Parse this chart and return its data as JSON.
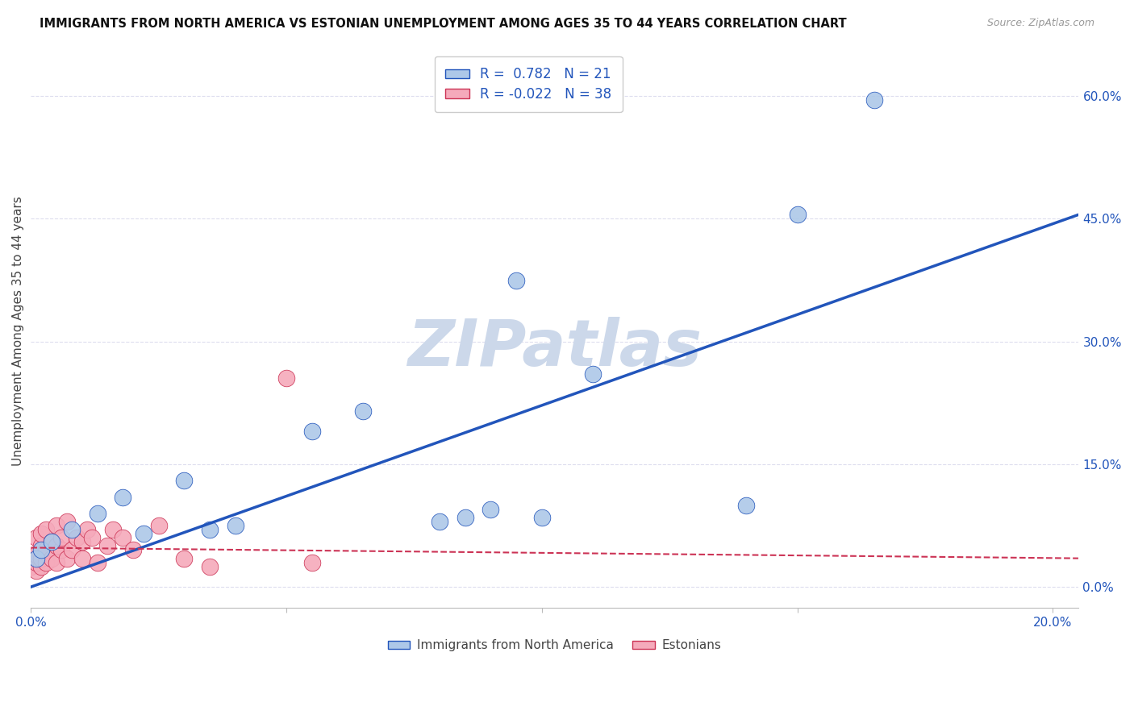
{
  "title": "IMMIGRANTS FROM NORTH AMERICA VS ESTONIAN UNEMPLOYMENT AMONG AGES 35 TO 44 YEARS CORRELATION CHART",
  "source": "Source: ZipAtlas.com",
  "ylabel": "Unemployment Among Ages 35 to 44 years",
  "xlim": [
    0.0,
    0.205
  ],
  "ylim": [
    -0.025,
    0.65
  ],
  "xticks": [
    0.0,
    0.05,
    0.1,
    0.15,
    0.2
  ],
  "xtick_labels": [
    "0.0%",
    "",
    "",
    "",
    "20.0%"
  ],
  "ytick_labels_right": [
    "60.0%",
    "45.0%",
    "30.0%",
    "15.0%",
    "0.0%"
  ],
  "ytick_vals_right": [
    0.6,
    0.45,
    0.3,
    0.15,
    0.0
  ],
  "blue_R": 0.782,
  "blue_N": 21,
  "pink_R": -0.022,
  "pink_N": 38,
  "blue_scatter_x": [
    0.001,
    0.002,
    0.004,
    0.008,
    0.013,
    0.018,
    0.022,
    0.03,
    0.035,
    0.04,
    0.055,
    0.065,
    0.08,
    0.085,
    0.09,
    0.095,
    0.1,
    0.11,
    0.14,
    0.15,
    0.165
  ],
  "blue_scatter_y": [
    0.035,
    0.045,
    0.055,
    0.07,
    0.09,
    0.11,
    0.065,
    0.13,
    0.07,
    0.075,
    0.19,
    0.215,
    0.08,
    0.085,
    0.095,
    0.375,
    0.085,
    0.26,
    0.1,
    0.455,
    0.595
  ],
  "pink_scatter_x": [
    0.0,
    0.0,
    0.001,
    0.001,
    0.001,
    0.001,
    0.002,
    0.002,
    0.002,
    0.002,
    0.003,
    0.003,
    0.003,
    0.004,
    0.004,
    0.005,
    0.005,
    0.005,
    0.006,
    0.006,
    0.007,
    0.007,
    0.008,
    0.009,
    0.01,
    0.01,
    0.011,
    0.012,
    0.013,
    0.015,
    0.016,
    0.018,
    0.02,
    0.025,
    0.03,
    0.035,
    0.05,
    0.055
  ],
  "pink_scatter_y": [
    0.025,
    0.035,
    0.02,
    0.03,
    0.04,
    0.06,
    0.025,
    0.035,
    0.05,
    0.065,
    0.03,
    0.045,
    0.07,
    0.035,
    0.055,
    0.03,
    0.05,
    0.075,
    0.045,
    0.06,
    0.035,
    0.08,
    0.045,
    0.06,
    0.035,
    0.055,
    0.07,
    0.06,
    0.03,
    0.05,
    0.07,
    0.06,
    0.045,
    0.075,
    0.035,
    0.025,
    0.255,
    0.03
  ],
  "blue_line_x": [
    0.0,
    0.205
  ],
  "blue_line_y": [
    0.0,
    0.455
  ],
  "pink_line_x": [
    0.0,
    0.205
  ],
  "pink_line_y": [
    0.048,
    0.035
  ],
  "blue_color": "#adc8e8",
  "blue_line_color": "#2255bb",
  "pink_color": "#f5aabb",
  "pink_line_color": "#cc3355",
  "background_color": "#ffffff",
  "grid_color": "#ddddee",
  "watermark_text": "ZIPatlas",
  "watermark_color": "#ccd8ea"
}
